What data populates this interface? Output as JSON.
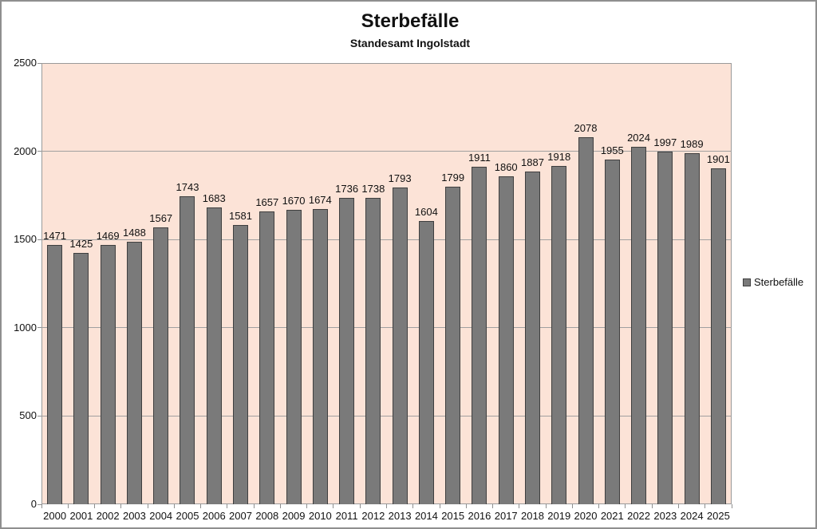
{
  "title": "Sterbefälle",
  "subtitle": "Standesamt Ingolstadt",
  "legend": {
    "label": "Sterbefälle"
  },
  "colors": {
    "plot_bg": "#fce3d7",
    "bar_fill": "#7a7a7a",
    "bar_border": "#3f3f3f",
    "gridline": "#a0a0a0",
    "axis_line": "#9a9a9a",
    "tick": "#8f8f8f",
    "text": "#111111",
    "outer_border": "#8f8f8f",
    "page_bg": "#ffffff"
  },
  "chart_data": {
    "type": "bar",
    "title": "Sterbefälle",
    "subtitle": "Standesamt Ingolstadt",
    "series_name": "Sterbefälle",
    "categories": [
      "2000",
      "2001",
      "2002",
      "2003",
      "2004",
      "2005",
      "2006",
      "2007",
      "2008",
      "2009",
      "2010",
      "2011",
      "2012",
      "2013",
      "2014",
      "2015",
      "2016",
      "2017",
      "2018",
      "2019",
      "2020",
      "2021",
      "2022",
      "2023",
      "2024",
      "2025"
    ],
    "values": [
      1471,
      1425,
      1469,
      1488,
      1567,
      1743,
      1683,
      1581,
      1657,
      1670,
      1674,
      1736,
      1738,
      1793,
      1604,
      1799,
      1911,
      1860,
      1887,
      1918,
      2078,
      1955,
      2024,
      1997,
      1989,
      1901
    ],
    "xlabel": "",
    "ylabel": "",
    "ylim": [
      0,
      2500
    ],
    "yticks": [
      0,
      500,
      1000,
      1500,
      2000,
      2500
    ],
    "grid": true,
    "data_labels": true,
    "legend_position": "right"
  }
}
